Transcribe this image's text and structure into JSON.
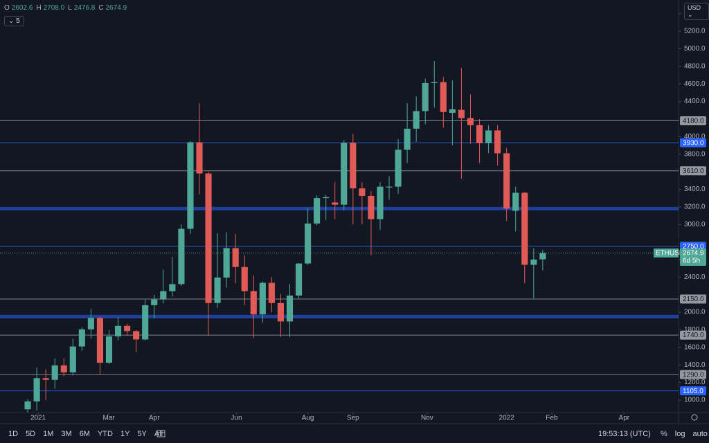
{
  "legend": {
    "ohlc": [
      {
        "key": "O",
        "value": "2602.6"
      },
      {
        "key": "H",
        "value": "2708.0"
      },
      {
        "key": "L",
        "value": "2476.8"
      },
      {
        "key": "C",
        "value": "2674.9"
      }
    ],
    "collapse": "5"
  },
  "currency": "USD",
  "chart_data": {
    "type": "candlestick",
    "symbol": "ETHUSD",
    "countdown": "6d 5h",
    "up_color": "#4fa896",
    "down_color": "#e05a56",
    "open": [
      895,
      985,
      1250,
      1230,
      1395,
      1315,
      1610,
      1805,
      1935,
      1425,
      1725,
      1845,
      1785,
      1690,
      2080,
      2145,
      2240,
      2320,
      2950,
      3935,
      3580,
      2105,
      2395,
      2730,
      2515,
      2240,
      1975,
      2335,
      2105,
      1895,
      2190,
      2555,
      3010,
      3300,
      3250,
      3225,
      3930,
      3410,
      3325,
      3060,
      3420,
      3430,
      3850,
      4090,
      4290,
      4610,
      4620,
      4270,
      4305,
      4210,
      4130,
      3925,
      4070,
      3810,
      3155,
      3360,
      2540,
      2602.6
    ],
    "high": [
      1010,
      1370,
      1350,
      1475,
      1480,
      1700,
      1830,
      2040,
      1950,
      1800,
      1945,
      1870,
      1800,
      2145,
      2200,
      2485,
      2630,
      3000,
      3950,
      4380,
      3600,
      2900,
      2910,
      2890,
      2650,
      2420,
      2350,
      2400,
      2210,
      2320,
      2560,
      3180,
      3330,
      3335,
      3480,
      3960,
      4030,
      3480,
      3380,
      3480,
      3550,
      3970,
      4380,
      4460,
      4660,
      4860,
      4680,
      4640,
      4780,
      4480,
      4200,
      4130,
      4130,
      3870,
      3430,
      3370,
      2730,
      2708
    ],
    "low": [
      860,
      880,
      1000,
      1130,
      1270,
      1280,
      1560,
      1700,
      1290,
      1410,
      1680,
      1730,
      1545,
      1680,
      1930,
      2100,
      2180,
      2300,
      2890,
      3340,
      1730,
      2050,
      2280,
      2330,
      2080,
      1705,
      1880,
      2000,
      1720,
      1720,
      2160,
      2540,
      2990,
      3050,
      3060,
      3160,
      3000,
      3000,
      2650,
      2940,
      3280,
      3350,
      3700,
      3940,
      4140,
      4330,
      4100,
      3900,
      3520,
      3920,
      3700,
      3810,
      3670,
      3040,
      2920,
      2330,
      2160,
      2476.8
    ],
    "close": [
      985,
      1250,
      1230,
      1395,
      1315,
      1610,
      1805,
      1935,
      1425,
      1725,
      1845,
      1785,
      1690,
      2080,
      2145,
      2240,
      2320,
      2950,
      3935,
      3580,
      2105,
      2395,
      2730,
      2515,
      2240,
      1975,
      2335,
      2105,
      1895,
      2190,
      2555,
      3010,
      3300,
      3310,
      3225,
      3930,
      3410,
      3325,
      3060,
      3430,
      3430,
      3850,
      4090,
      4290,
      4610,
      4620,
      4280,
      4310,
      4210,
      4130,
      3925,
      4070,
      3810,
      3180,
      3360,
      2540,
      2600,
      2674.9
    ],
    "ylim": [
      858,
      5555
    ],
    "yticks": [
      {
        "value": 1000,
        "label": "1000.0"
      },
      {
        "value": 1200,
        "label": "1200.0"
      },
      {
        "value": 1400,
        "label": "1400.0"
      },
      {
        "value": 1600,
        "label": "1600.0"
      },
      {
        "value": 1800,
        "label": "1800.0"
      },
      {
        "value": 2000,
        "label": "2000.0"
      },
      {
        "value": 2400,
        "label": "2400.0"
      },
      {
        "value": 2600,
        "label": "2600.0"
      },
      {
        "value": 3000,
        "label": "3000.0"
      },
      {
        "value": 3200,
        "label": "3200.0"
      },
      {
        "value": 3400,
        "label": "3400.0"
      },
      {
        "value": 3800,
        "label": "3800.0"
      },
      {
        "value": 4000,
        "label": "4000.0"
      },
      {
        "value": 4400,
        "label": "4400.0"
      },
      {
        "value": 4600,
        "label": "4600.0"
      },
      {
        "value": 4800,
        "label": "4800.0"
      },
      {
        "value": 5000,
        "label": "5000.0"
      },
      {
        "value": 5200,
        "label": "5200.0"
      },
      {
        "value": 5400,
        "label": "5400.0"
      }
    ],
    "xlim": [
      -3.07,
      72.03
    ],
    "xticks": [
      {
        "value": 1.15,
        "label": "2021"
      },
      {
        "value": 8.97,
        "label": "Mar"
      },
      {
        "value": 14,
        "label": "Apr"
      },
      {
        "value": 23.1,
        "label": "Jun"
      },
      {
        "value": 31,
        "label": "Aug"
      },
      {
        "value": 36,
        "label": "Sep"
      },
      {
        "value": 44.2,
        "label": "Nov"
      },
      {
        "value": 53,
        "label": "2022"
      },
      {
        "value": 58,
        "label": "Feb"
      },
      {
        "value": 66,
        "label": "Apr"
      }
    ],
    "levels": [
      {
        "value": 4180,
        "label": "4180.0",
        "color": "#9598a1"
      },
      {
        "value": 3930,
        "label": "3930.0",
        "color": "#2962ff"
      },
      {
        "value": 3610,
        "label": "3610.0",
        "color": "#9598a1"
      },
      {
        "value": 2750,
        "label": "2750.0",
        "color": "#2962ff"
      },
      {
        "value": 2150,
        "label": "2150.0",
        "color": "#9598a1"
      },
      {
        "value": 1740,
        "label": "1740.0",
        "color": "#9598a1"
      },
      {
        "value": 1290,
        "label": "1290.0",
        "color": "#9598a1"
      },
      {
        "value": 1105,
        "label": "1105.0",
        "color": "#2962ff"
      }
    ],
    "zones": [
      {
        "value": 3180,
        "color": "#2962ff"
      },
      {
        "value": 1950,
        "color": "#2962ff"
      }
    ]
  },
  "bottom_bar": {
    "ranges": [
      "1D",
      "5D",
      "1M",
      "3M",
      "6M",
      "YTD",
      "1Y",
      "5Y",
      "All"
    ],
    "clock": "19:53:13 (UTC)",
    "options": [
      "%",
      "log",
      "auto"
    ]
  }
}
